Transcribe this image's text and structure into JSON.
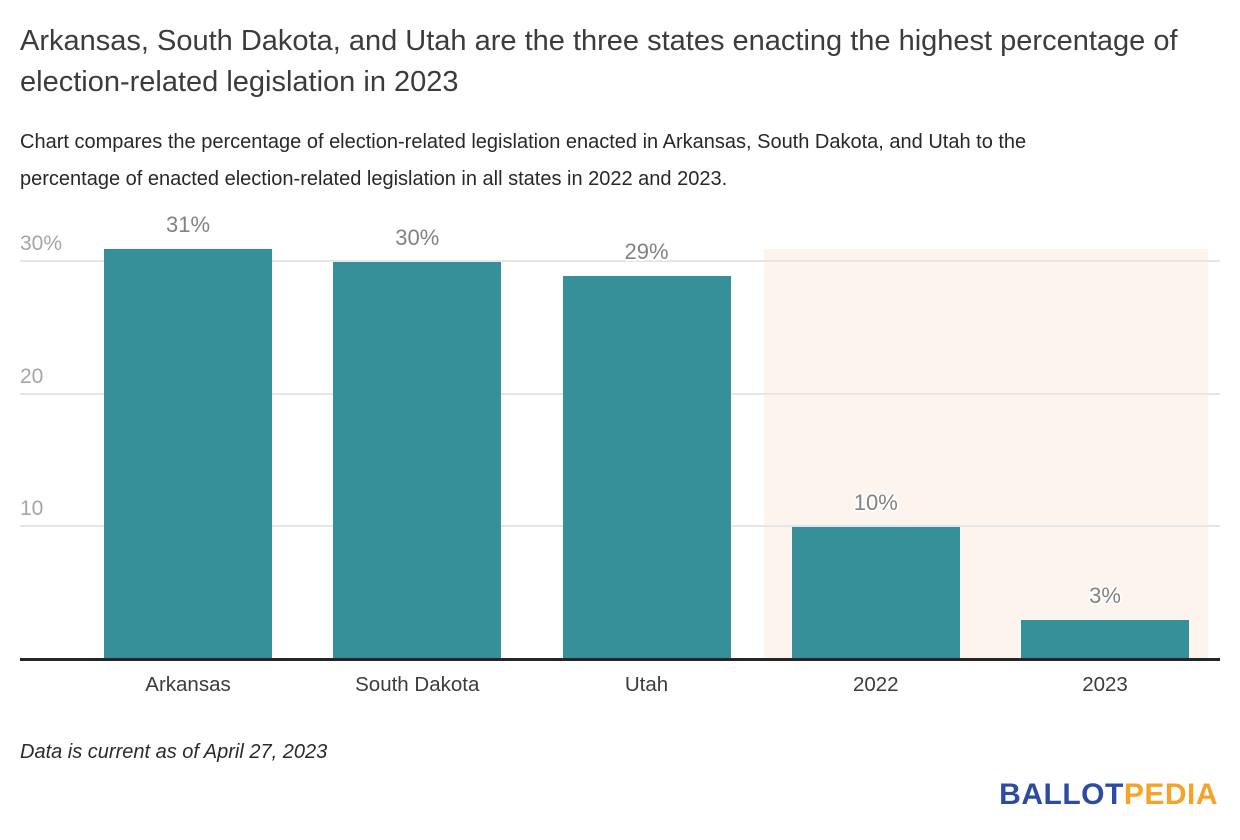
{
  "chart_data": {
    "type": "bar",
    "title": "Arkansas, South Dakota, and Utah are the three states enacting the highest percentage of election-related legislation in 2023",
    "subtitle": "Chart compares the percentage of election-related legislation enacted in Arkansas, South Dakota, and Utah to the percentage of enacted election-related legislation in all states in 2022 and 2023.",
    "categories": [
      "Arkansas",
      "South Dakota",
      "Utah",
      "2022",
      "2023"
    ],
    "values": [
      31,
      30,
      29,
      10,
      3
    ],
    "point_labels": [
      "31%",
      "30%",
      "29%",
      "10%",
      "3%"
    ],
    "yticks": [
      {
        "value": 30,
        "label": "30%"
      },
      {
        "value": 20,
        "label": "20"
      },
      {
        "value": 10,
        "label": "10"
      }
    ],
    "ylim": [
      0,
      31
    ],
    "xlabel": "",
    "ylabel": "",
    "grid": true,
    "legend": false,
    "bar_color": "#35909a",
    "gridline_color": "#e6e6e6",
    "axis_line_color": "#262626",
    "plot_band": {
      "from_category": "2022",
      "to_category": "2023",
      "color": "#fdf4ee"
    }
  },
  "footnote": "Data is current as of April 27, 2023",
  "logo": {
    "part1": "BALLOT",
    "part2": "PEDIA",
    "part1_color": "#2d4ba3",
    "part2_color": "#f6a428"
  }
}
